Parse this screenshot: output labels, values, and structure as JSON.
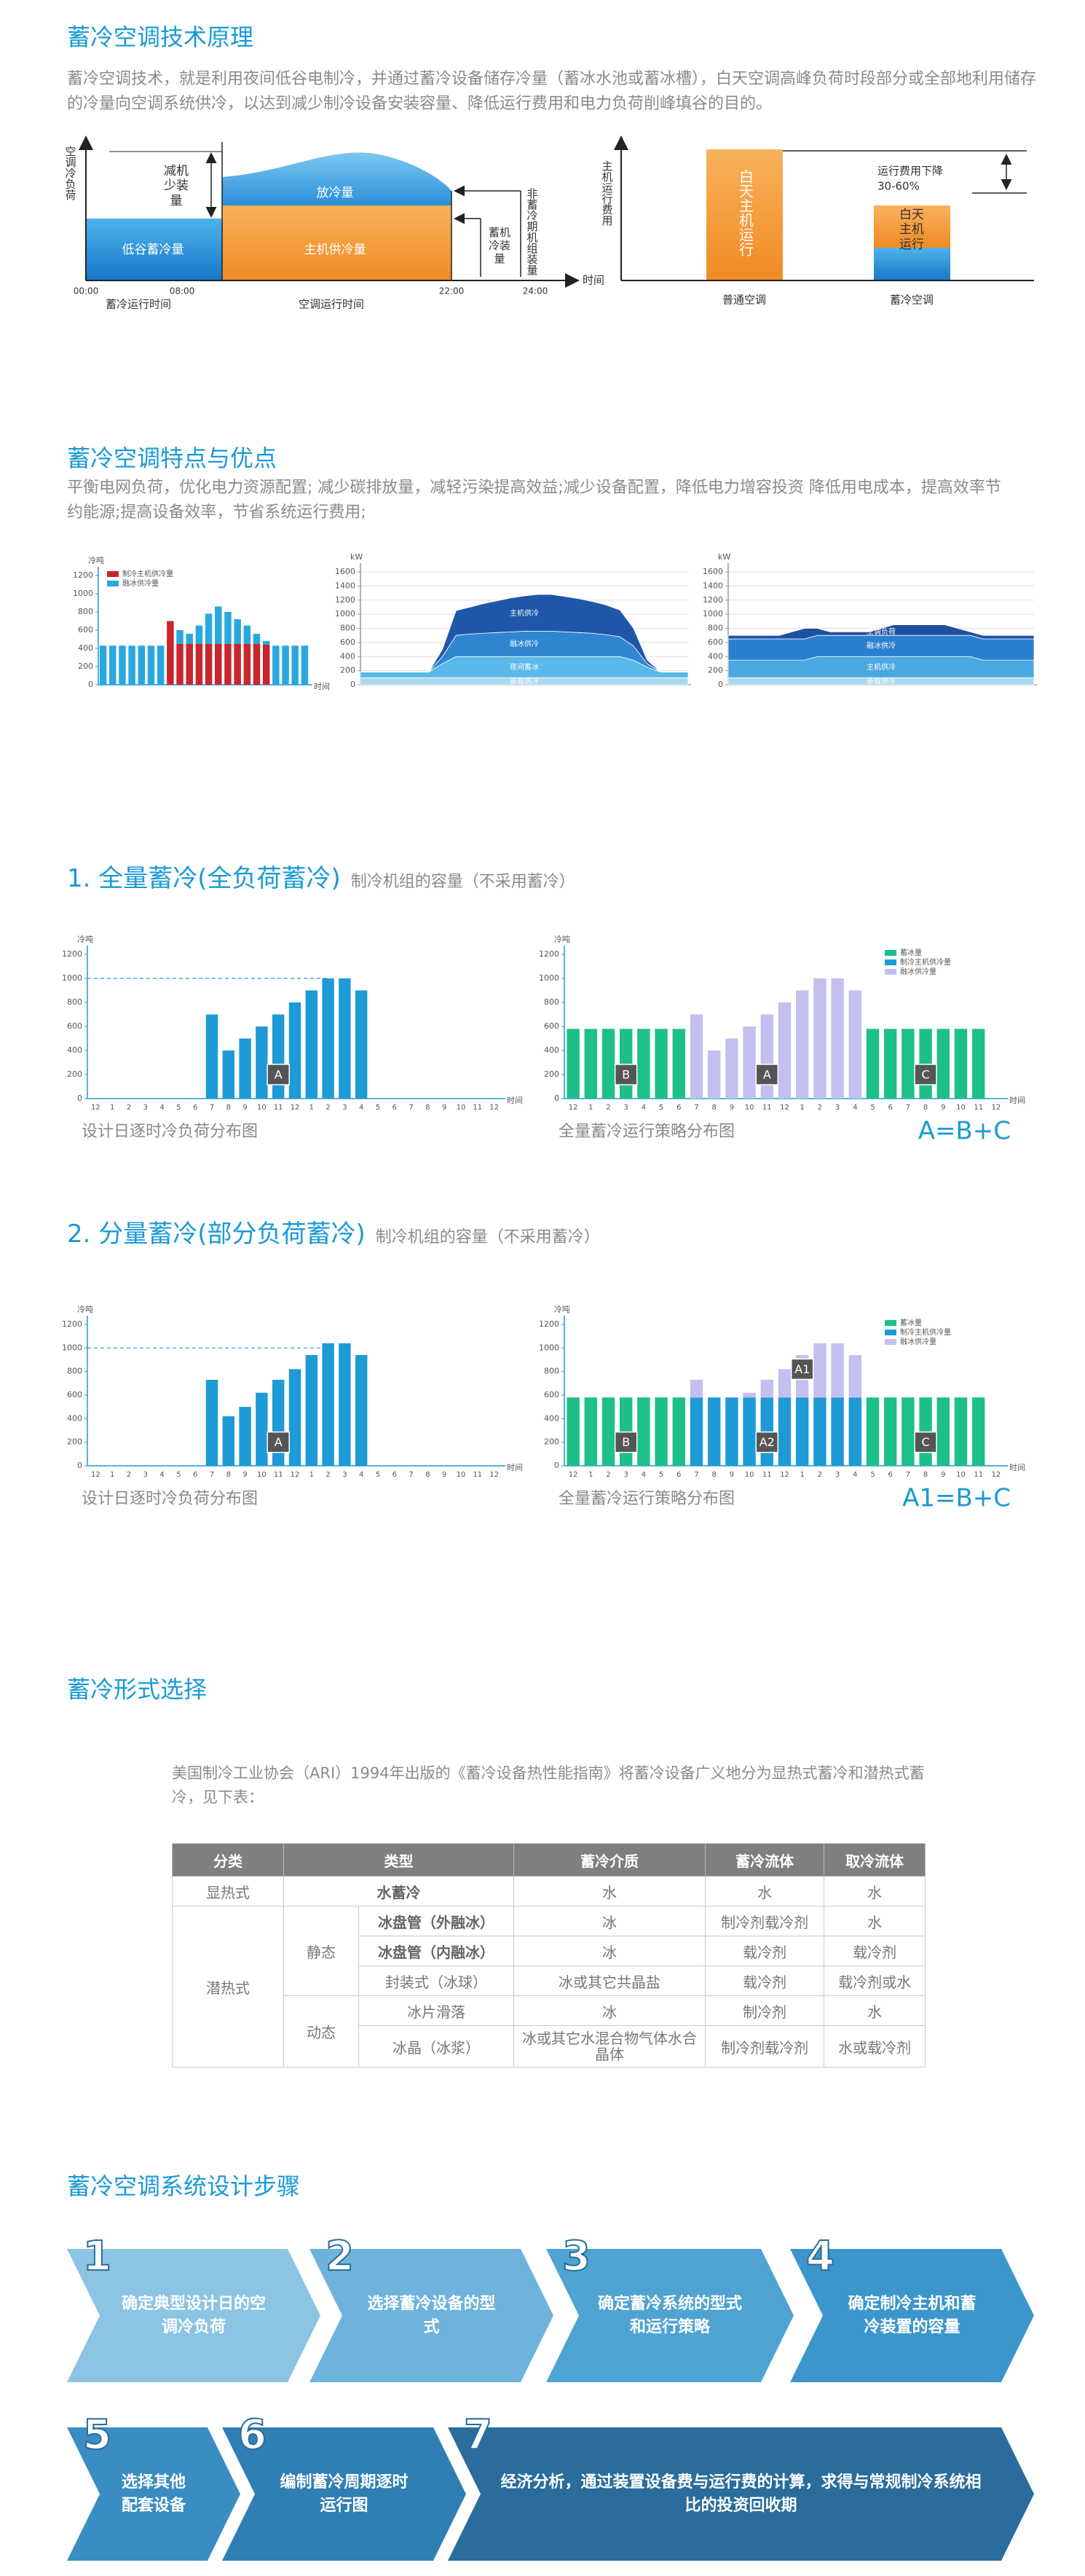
{
  "principle": {
    "title": "蓄冷空调技术原理",
    "text": "蓄冷空调技术，就是利用夜间低谷电制冷，并通过蓄冷设备储存冷量（蓄冰水池或蓄冰槽），白天空调高峰负荷时段部分或全部地利用储存的冷量向空调系统供冷，以达到减少制冷设备安装容量、降低运行费用和电力负荷削峰填谷的目的。",
    "left_diagram": {
      "y_label": "空调冷负荷",
      "x_label": "时间",
      "reduced": "减机少装量",
      "release": "放冷量",
      "valley": "低谷蓄冷量",
      "chiller": "主机供冷量",
      "storage_capacity": "蓄机冷装量",
      "non_storage_capacity": "非蓄冷期机组装量",
      "times": [
        "00:00",
        "08:00",
        "22:00",
        "24:00"
      ],
      "storage_period": "蓄冷运行时间",
      "ac_period": "空调运行时间"
    },
    "right_diagram": {
      "y_label": "主机运行费用",
      "bar_label": "白天主机运行",
      "reduced_bar_label": "白天主机运行",
      "saving": "运行费用下降",
      "saving_range": "30-60%",
      "categories": [
        "普通空调",
        "蓄冷空调"
      ]
    }
  },
  "features": {
    "title": "蓄冷空调特点与优点",
    "text": "平衡电网负荷，优化电力资源配置; 减少碳排放量，减轻污染提高效益;减少设备配置，降低电力增容投资 降低用电成本，提高效率节约能源;提高设备效率，节省系统运行费用;"
  },
  "full": {
    "heading": "1. 全量蓄冷(全负荷蓄冷)",
    "subheading": "制冷机组的容量（不采用蓄冷）"
  },
  "partial": {
    "heading": "2. 分量蓄冷(部分负荷蓄冷)",
    "subheading": "制冷机组的容量（不采用蓄冷）"
  },
  "selection": {
    "title": "蓄冷形式选择",
    "text": "美国制冷工业协会（ARI）1994年出版的《蓄冷设备热性能指南》将蓄冷设备广义地分为显热式蓄冷和潜热式蓄冷，见下表：",
    "table": {
      "header": [
        "分类",
        "类型",
        "蓄冷介质",
        "蓄冷流体",
        "取冷流体"
      ],
      "rows": [
        [
          "显热式",
          "水蓄冷",
          "水",
          "水",
          "水"
        ],
        [
          "潜热式",
          "静态",
          "冰盘管（外融冰）",
          "冰",
          "制冷剂载冷剂",
          "水"
        ],
        [
          "冰盘管（内融冰）",
          "冰",
          "载冷剂",
          "载冷剂"
        ],
        [
          "封装式（冰球）",
          "冰或其它共晶盐",
          "载冷剂",
          "载冷剂或水"
        ],
        [
          "动态",
          "冰片滑落",
          "冰",
          "制冷剂",
          "水"
        ],
        [
          "冰晶（冰浆）",
          "冰或其它水混合物气体水合晶体",
          "制冷剂载冷剂",
          "水或载冷剂"
        ]
      ]
    }
  },
  "steps": {
    "title": "蓄冷空调系统设计步骤",
    "items": [
      {
        "number": 1,
        "text": "确定典型设计日的空调冷负荷"
      },
      {
        "number": 2,
        "text": "选择蓄冷设备的型式"
      },
      {
        "number": 3,
        "text": "确定蓄冷系统的型式和运行策略"
      },
      {
        "number": 4,
        "text": "确定制冷主机和蓄冷装置的容量"
      },
      {
        "number": 5,
        "text": "选择其他配套设备"
      },
      {
        "number": 6,
        "text": "编制蓄冷周期逐时运行图"
      },
      {
        "number": 7,
        "text": "经济分析，通过装置设备费与运行费的计算，求得与常规制冷系统相比的投资回收期"
      }
    ]
  },
  "chart_data": [
    {
      "type": "stacked_bar",
      "y_label": "冷吨",
      "x_label": "时间",
      "legend": "top-left",
      "categories": [
        null,
        null,
        null,
        null,
        null,
        null,
        null,
        null,
        null,
        null,
        null,
        null,
        null,
        null,
        null,
        null,
        null,
        null,
        null,
        null,
        null,
        null
      ],
      "series": [
        {
          "name": "制冷主机供冷量",
          "color": "#c8262c",
          "values": [
            null,
            null,
            null,
            null,
            null,
            null,
            null,
            700,
            450,
            450,
            450,
            450,
            450,
            450,
            450,
            450,
            450,
            440,
            null,
            null,
            null,
            null
          ]
        },
        {
          "name": "融冰供冷量",
          "color": "#29a8e0",
          "values": [
            430,
            430,
            430,
            430,
            430,
            430,
            430,
            null,
            150,
            110,
            200,
            330,
            410,
            350,
            270,
            200,
            110,
            40,
            430,
            430,
            430,
            430
          ]
        }
      ],
      "ylim": [
        0,
        1200
      ],
      "yticks": [
        0,
        200,
        400,
        600,
        800,
        1000,
        1200
      ]
    },
    {
      "type": "area",
      "y_label": "kW",
      "grid": true,
      "x": [
        0,
        1,
        2,
        3,
        4,
        5,
        6,
        7,
        8,
        9,
        10,
        11,
        12,
        13,
        14,
        15,
        16,
        17,
        18,
        19,
        20,
        21,
        22,
        23,
        24
      ],
      "xlim": [
        0,
        24
      ],
      "series": [
        {
          "name": "基载供冷",
          "color": "#a9d8f2",
          "values": [
            100,
            100,
            100,
            100,
            100,
            100,
            100,
            100,
            100,
            100,
            100,
            100,
            100,
            100,
            100,
            100,
            100,
            100,
            100,
            100,
            100,
            100,
            100,
            100,
            100
          ]
        },
        {
          "name": "夜间蓄冰",
          "color": "#5bb8e8",
          "values": [
            80,
            80,
            80,
            80,
            80,
            80,
            200,
            300,
            300,
            300,
            300,
            300,
            300,
            300,
            300,
            300,
            300,
            300,
            300,
            300,
            250,
            150,
            80,
            80,
            80
          ]
        },
        {
          "name": "融冰供冷",
          "color": "#2f86d0",
          "values": [
            0,
            0,
            0,
            0,
            0,
            0,
            100,
            300,
            320,
            330,
            340,
            350,
            360,
            360,
            360,
            350,
            340,
            330,
            310,
            280,
            200,
            50,
            0,
            0,
            0
          ]
        },
        {
          "name": "主机供冷",
          "color": "#1f56a8",
          "values": [
            0,
            0,
            0,
            0,
            0,
            0,
            100,
            350,
            380,
            420,
            450,
            480,
            500,
            520,
            520,
            500,
            480,
            450,
            420,
            380,
            250,
            50,
            0,
            0,
            0
          ]
        }
      ],
      "ylim": [
        0,
        1600
      ],
      "yticks": [
        0,
        200,
        400,
        600,
        800,
        1000,
        1200,
        1400,
        1600
      ]
    },
    {
      "type": "area",
      "y_label": "kW",
      "grid": true,
      "x": [
        0,
        1,
        2,
        3,
        4,
        5,
        6,
        7,
        8,
        9,
        10,
        11,
        12,
        13,
        14,
        15,
        16,
        17,
        18,
        19,
        20,
        21,
        22,
        23,
        24
      ],
      "xlim": [
        0,
        24
      ],
      "series": [
        {
          "name": "基载供冷",
          "color": "#a9d8f2",
          "values": [
            100,
            100,
            100,
            100,
            100,
            100,
            100,
            100,
            100,
            100,
            100,
            100,
            100,
            100,
            100,
            100,
            100,
            100,
            100,
            100,
            100,
            100,
            100,
            100,
            100
          ]
        },
        {
          "name": "主机供冷",
          "color": "#4aa8e0",
          "values": [
            250,
            250,
            250,
            250,
            250,
            250,
            250,
            300,
            300,
            300,
            300,
            300,
            300,
            300,
            300,
            300,
            300,
            300,
            300,
            300,
            250,
            250,
            250,
            250,
            250
          ]
        },
        {
          "name": "融冰供冷",
          "color": "#2b7fd0",
          "values": [
            300,
            300,
            300,
            300,
            300,
            300,
            300,
            300,
            300,
            300,
            300,
            300,
            300,
            300,
            300,
            300,
            300,
            300,
            300,
            300,
            300,
            300,
            300,
            300,
            300
          ]
        },
        {
          "name": "空调负荷",
          "color": "#1f4fa0",
          "values": [
            50,
            50,
            50,
            50,
            50,
            100,
            150,
            100,
            50,
            50,
            50,
            50,
            100,
            150,
            150,
            150,
            150,
            150,
            100,
            50,
            50,
            50,
            50,
            50,
            50
          ]
        }
      ],
      "ylim": [
        0,
        1600
      ],
      "yticks": [
        0,
        200,
        400,
        600,
        800,
        1000,
        1200,
        1400,
        1600
      ]
    },
    {
      "type": "bar",
      "y_label": "冷吨",
      "x_label": "时间",
      "color": "#1e9ad6",
      "reference": 1000,
      "categories": [
        "12",
        "1",
        "2",
        "3",
        "4",
        "5",
        "6",
        "7",
        "8",
        "9",
        "10",
        "11",
        "12",
        "1",
        "2",
        "3",
        "4",
        "5",
        "6",
        "7",
        "8",
        "9",
        "10",
        "11",
        "12"
      ],
      "values": [
        null,
        null,
        null,
        null,
        null,
        null,
        null,
        700,
        400,
        500,
        600,
        700,
        800,
        900,
        1000,
        1000,
        900,
        null,
        null,
        null,
        null,
        null,
        null,
        null,
        null
      ],
      "ylim": [
        0,
        1200
      ],
      "yticks": [
        0,
        200,
        400,
        600,
        800,
        1000,
        1200
      ],
      "annotations": [
        "A"
      ],
      "caption": "设计日逐时冷负荷分布图"
    },
    {
      "type": "stacked_bar",
      "y_label": "冷吨",
      "x_label": "时间",
      "legend": "top-right",
      "categories": [
        "12",
        "1",
        "2",
        "3",
        "4",
        "5",
        "6",
        "7",
        "8",
        "9",
        "10",
        "11",
        "12",
        "1",
        "2",
        "3",
        "4",
        "5",
        "6",
        "7",
        "8",
        "9",
        "10",
        "11",
        "12"
      ],
      "series": [
        {
          "name": "蓄冰量",
          "color": "#1dbf8a",
          "values": [
            580,
            580,
            580,
            580,
            580,
            580,
            580,
            null,
            null,
            null,
            null,
            null,
            null,
            null,
            null,
            null,
            null,
            580,
            580,
            580,
            580,
            580,
            580,
            580,
            null
          ]
        },
        {
          "name": "制冷主机供冷量",
          "color": "#1e9ad6",
          "values": [
            null,
            null,
            null,
            null,
            null,
            null,
            null,
            null,
            null,
            null,
            null,
            null,
            null,
            null,
            null,
            null,
            null,
            null,
            null,
            null,
            null,
            null,
            null,
            null,
            null
          ]
        },
        {
          "name": "融冰供冷量",
          "color": "#c3c0ef",
          "values": [
            null,
            null,
            null,
            null,
            null,
            null,
            null,
            700,
            400,
            500,
            600,
            700,
            800,
            900,
            1000,
            1000,
            900,
            null,
            null,
            null,
            null,
            null,
            null,
            null,
            null
          ]
        }
      ],
      "ylim": [
        0,
        1200
      ],
      "yticks": [
        0,
        200,
        400,
        600,
        800,
        1000,
        1200
      ],
      "annotations": [
        "B",
        "A",
        "C"
      ],
      "caption": "全量蓄冷运行策略分布图",
      "note": "A=B+C"
    },
    {
      "type": "bar",
      "y_label": "冷吨",
      "x_label": "时间",
      "color": "#1e9ad6",
      "reference": 1000,
      "categories": [
        "12",
        "1",
        "2",
        "3",
        "4",
        "5",
        "6",
        "7",
        "8",
        "9",
        "10",
        "11",
        "12",
        "1",
        "2",
        "3",
        "4",
        "5",
        "6",
        "7",
        "8",
        "9",
        "10",
        "11",
        "12"
      ],
      "values": [
        null,
        null,
        null,
        null,
        null,
        null,
        null,
        730,
        420,
        500,
        620,
        730,
        820,
        940,
        1040,
        1040,
        940,
        null,
        null,
        null,
        null,
        null,
        null,
        null,
        null
      ],
      "ylim": [
        0,
        1200
      ],
      "yticks": [
        0,
        200,
        400,
        600,
        800,
        1000,
        1200
      ],
      "annotations": [
        "A"
      ],
      "caption": "设计日逐时冷负荷分布图"
    },
    {
      "type": "stacked_bar",
      "y_label": "冷吨",
      "x_label": "时间",
      "legend": "top-right",
      "categories": [
        "12",
        "1",
        "2",
        "3",
        "4",
        "5",
        "6",
        "7",
        "8",
        "9",
        "10",
        "11",
        "12",
        "1",
        "2",
        "3",
        "4",
        "5",
        "6",
        "7",
        "8",
        "9",
        "10",
        "11",
        "12"
      ],
      "series": [
        {
          "name": "蓄冰量",
          "color": "#1dbf8a",
          "values": [
            580,
            580,
            580,
            580,
            580,
            580,
            580,
            null,
            null,
            null,
            null,
            null,
            null,
            null,
            null,
            null,
            null,
            580,
            580,
            580,
            580,
            580,
            580,
            580,
            null
          ]
        },
        {
          "name": "制冷主机供冷量",
          "color": "#1e9ad6",
          "values": [
            null,
            null,
            null,
            null,
            null,
            null,
            null,
            580,
            580,
            580,
            580,
            580,
            580,
            580,
            580,
            580,
            580,
            null,
            null,
            null,
            null,
            null,
            null,
            null,
            null
          ]
        },
        {
          "name": "融冰供冷量",
          "color": "#c3c0ef",
          "values": [
            null,
            null,
            null,
            null,
            null,
            null,
            null,
            150,
            null,
            null,
            40,
            150,
            240,
            360,
            460,
            460,
            360,
            null,
            null,
            null,
            null,
            null,
            null,
            null,
            null
          ]
        }
      ],
      "ylim": [
        0,
        1200
      ],
      "yticks": [
        0,
        200,
        400,
        600,
        800,
        1000,
        1200
      ],
      "annotations": [
        "B",
        "A1",
        "A2",
        "C"
      ],
      "caption": "全量蓄冷运行策略分布图",
      "note": "A1=B+C"
    }
  ]
}
